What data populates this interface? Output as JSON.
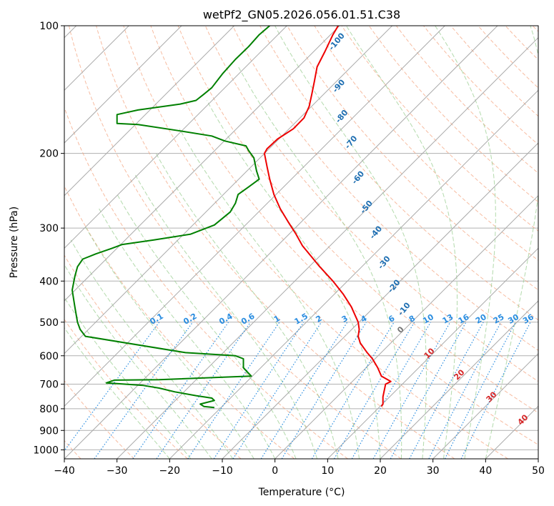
{
  "chart_data": {
    "type": "line",
    "title": "wetPf2_GN05.2026.056.01.51.C38",
    "xlabel": "Temperature (°C)",
    "ylabel": "Pressure (hPa)",
    "xlim": [
      -40,
      50
    ],
    "ylim": [
      1050,
      100
    ],
    "y_scale": "log",
    "grid": true,
    "x_ticks": [
      -40,
      -30,
      -20,
      -10,
      0,
      10,
      20,
      30,
      40,
      50
    ],
    "y_ticks": [
      100,
      200,
      300,
      400,
      500,
      600,
      700,
      800,
      900,
      1000
    ],
    "colors": {
      "temperature": "#ee0000",
      "dewpoint": "#008000",
      "isotherm": "#aaaaaa",
      "mixing_ratio": "#2a8de0",
      "dry_label": "#1f6fb2",
      "wet_label": "#d62728",
      "dry_adiabat": "#f4a582",
      "moist_adiabat": "#9acd90"
    },
    "series": [
      {
        "name": "",
        "role": "temperature",
        "points": [
          [
            20.2,
            790
          ],
          [
            20.5,
            780
          ],
          [
            20.5,
            750
          ],
          [
            21.0,
            700
          ],
          [
            22.0,
            690
          ],
          [
            20.2,
            670
          ],
          [
            19.5,
            640
          ],
          [
            18.5,
            610
          ],
          [
            17.5,
            590
          ],
          [
            16.2,
            560
          ],
          [
            15.8,
            540
          ],
          [
            16.0,
            520
          ],
          [
            15.8,
            500
          ],
          [
            14.5,
            460
          ],
          [
            13.0,
            430
          ],
          [
            11.0,
            400
          ],
          [
            8.5,
            370
          ],
          [
            6.5,
            345
          ],
          [
            5.2,
            330
          ],
          [
            4.0,
            310
          ],
          [
            2.5,
            290
          ],
          [
            1.0,
            270
          ],
          [
            -0.2,
            250
          ],
          [
            -1.0,
            230
          ],
          [
            -1.5,
            215
          ],
          [
            -2.0,
            200
          ],
          [
            -1.5,
            195
          ],
          [
            0.5,
            185
          ],
          [
            3.5,
            175
          ],
          [
            5.5,
            165
          ],
          [
            6.5,
            155
          ],
          [
            7.0,
            145
          ],
          [
            7.5,
            135
          ],
          [
            8.0,
            125
          ],
          [
            9.5,
            115
          ],
          [
            11.0,
            105
          ],
          [
            12.0,
            100
          ]
        ]
      },
      {
        "name": "",
        "role": "dewpoint",
        "points": [
          [
            -11.5,
            795
          ],
          [
            -13.5,
            790
          ],
          [
            -14.2,
            780
          ],
          [
            -11.5,
            765
          ],
          [
            -12.0,
            755
          ],
          [
            -15.0,
            745
          ],
          [
            -19.0,
            730
          ],
          [
            -22.0,
            715
          ],
          [
            -25.0,
            705
          ],
          [
            -32.0,
            695
          ],
          [
            -30.5,
            685
          ],
          [
            -22.0,
            683
          ],
          [
            -4.5,
            670
          ],
          [
            -5.5,
            650
          ],
          [
            -6.0,
            640
          ],
          [
            -6.0,
            610
          ],
          [
            -7.5,
            600
          ],
          [
            -17.0,
            590
          ],
          [
            -36.0,
            540
          ],
          [
            -37.0,
            520
          ],
          [
            -37.5,
            500
          ],
          [
            -38.0,
            460
          ],
          [
            -38.5,
            420
          ],
          [
            -38.0,
            390
          ],
          [
            -37.5,
            370
          ],
          [
            -36.5,
            355
          ],
          [
            -34.0,
            345
          ],
          [
            -31.0,
            335
          ],
          [
            -29.0,
            328
          ],
          [
            -23.0,
            320
          ],
          [
            -16.0,
            310
          ],
          [
            -11.5,
            295
          ],
          [
            -8.5,
            275
          ],
          [
            -7.5,
            262
          ],
          [
            -7.0,
            250
          ],
          [
            -5.0,
            240
          ],
          [
            -3.0,
            230
          ],
          [
            -3.5,
            220
          ],
          [
            -4.0,
            205
          ],
          [
            -5.0,
            197
          ],
          [
            -5.5,
            192
          ],
          [
            -9.5,
            187
          ],
          [
            -12.0,
            182
          ],
          [
            -18.0,
            177
          ],
          [
            -26.0,
            171
          ],
          [
            -30.0,
            170
          ],
          [
            -30.0,
            162
          ],
          [
            -26.0,
            158
          ],
          [
            -18.0,
            153
          ],
          [
            -15.0,
            150
          ],
          [
            -13.5,
            145
          ],
          [
            -12.0,
            140
          ],
          [
            -10.0,
            130
          ],
          [
            -7.5,
            120
          ],
          [
            -5.0,
            112
          ],
          [
            -3.0,
            105
          ],
          [
            -1.0,
            100
          ]
        ]
      }
    ],
    "dry_adiabat_labels": [
      "-100",
      "-90",
      "-80",
      "-70",
      "-60",
      "-50",
      "-40",
      "-30",
      "-20",
      "-10"
    ],
    "moist_adiabat_labels": [
      "0",
      "10",
      "20",
      "30",
      "40"
    ],
    "mixing_ratio_labels": [
      "0.1",
      "0.2",
      "0.4",
      "0.6",
      "1",
      "1.5",
      "2",
      "3",
      "4",
      "6",
      "8",
      "10",
      "13",
      "16",
      "20",
      "25",
      "30",
      "36"
    ]
  }
}
